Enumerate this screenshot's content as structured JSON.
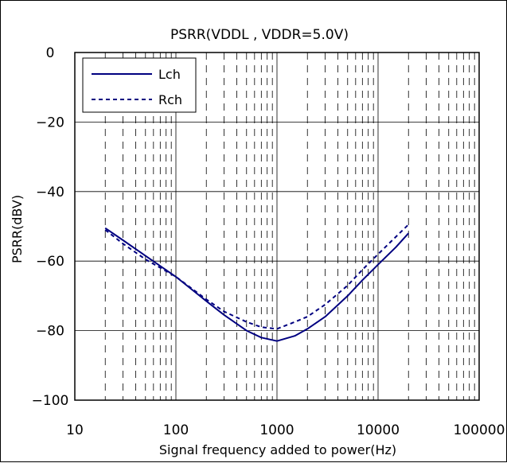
{
  "chart_data": {
    "type": "line",
    "title": "PSRR(VDDL , VDDR=5.0V)",
    "xlabel": "Signal frequency added to power(Hz)",
    "ylabel": "PSRR(dBV)",
    "x_scale": "log",
    "xlim": [
      10,
      100000
    ],
    "ylim": [
      -100,
      0
    ],
    "x_ticks": [
      10,
      100,
      1000,
      10000,
      100000
    ],
    "x_tick_labels": [
      "10",
      "100",
      "1000",
      "10000",
      "100000"
    ],
    "y_ticks": [
      0,
      -20,
      -40,
      -60,
      -80,
      -100
    ],
    "y_tick_labels": [
      "0",
      "−20",
      "−40",
      "−60",
      "−80",
      "−100"
    ],
    "grid": true,
    "legend_position": "top-left",
    "series": [
      {
        "name": "Lch",
        "color": "#000080",
        "style": "solid",
        "x": [
          20,
          30,
          50,
          100,
          200,
          300,
          500,
          700,
          1000,
          1500,
          2000,
          3000,
          5000,
          7000,
          10000,
          15000,
          20000
        ],
        "y": [
          -50.5,
          -54,
          -58.5,
          -64.5,
          -71.5,
          -75.5,
          -80,
          -82,
          -83,
          -81.5,
          -79.5,
          -76,
          -70,
          -65.5,
          -61,
          -56,
          -52
        ]
      },
      {
        "name": "Rch",
        "color": "#000080",
        "style": "dashed",
        "x": [
          20,
          30,
          50,
          100,
          200,
          300,
          500,
          700,
          1000,
          1500,
          2000,
          3000,
          5000,
          7000,
          10000,
          15000,
          20000
        ],
        "y": [
          -51,
          -55,
          -59.5,
          -64.5,
          -71,
          -74.5,
          -77.5,
          -79,
          -79.5,
          -77.5,
          -76,
          -72.5,
          -67,
          -62.5,
          -58,
          -53,
          -49.5
        ]
      }
    ]
  }
}
